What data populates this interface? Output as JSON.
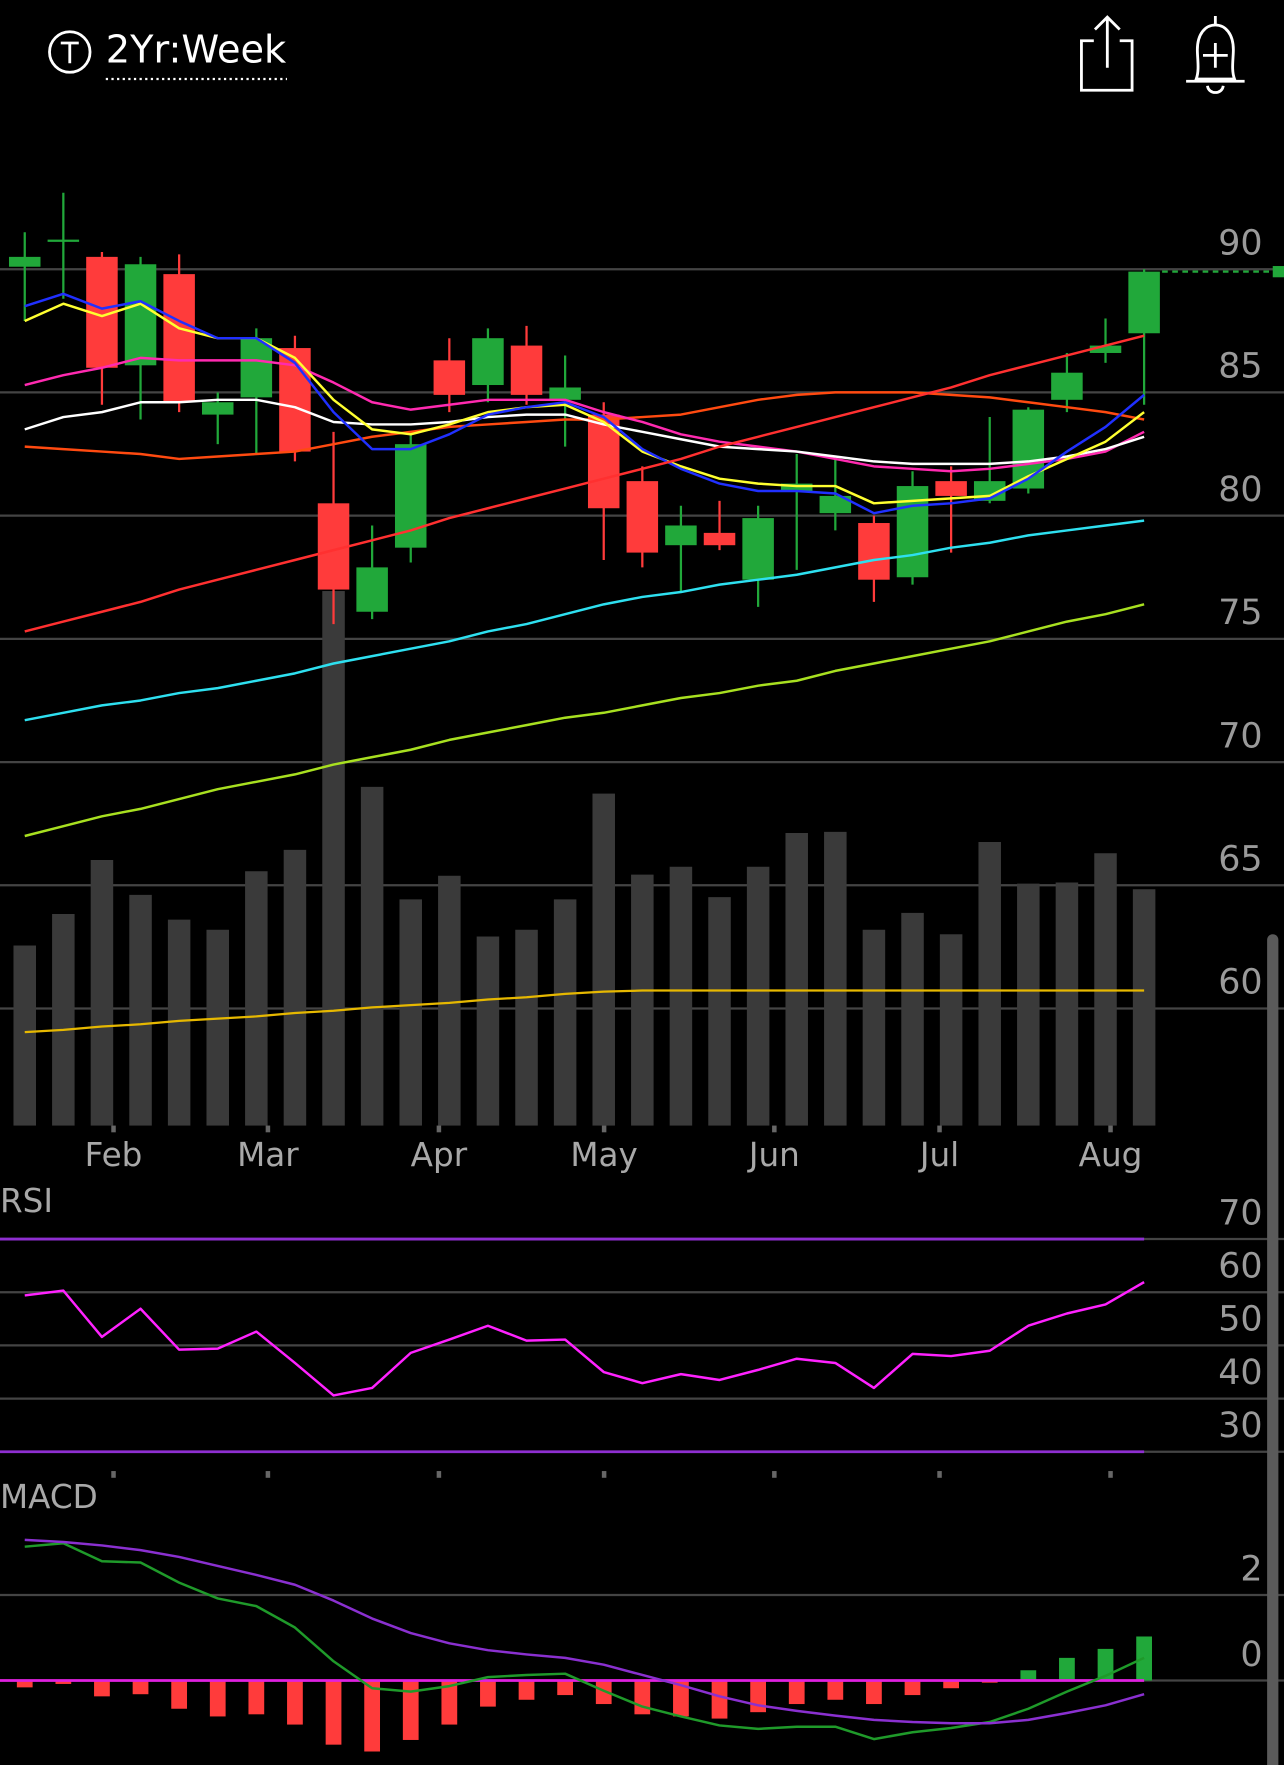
{
  "header": {
    "title": "2Yr:Week"
  },
  "chart_data": [
    {
      "type": "candlestick",
      "categories": [
        null,
        null,
        null,
        null,
        null,
        null,
        null,
        null,
        null,
        null,
        null,
        null,
        null,
        null,
        null,
        null,
        null,
        null,
        null,
        null,
        null,
        null,
        null,
        null,
        null,
        null,
        null,
        null,
        null,
        null
      ],
      "open": [
        90.1,
        91.2,
        90.5,
        86.1,
        89.8,
        84.1,
        84.8,
        86.8,
        80.5,
        76.1,
        78.7,
        86.3,
        85.3,
        86.9,
        84.7,
        84.1,
        81.4,
        78.8,
        79.3,
        77.4,
        81.0,
        80.1,
        79.7,
        77.5,
        81.4,
        80.6,
        81.1,
        84.7,
        86.6,
        87.4
      ],
      "high": [
        91.5,
        93.1,
        90.7,
        90.5,
        90.6,
        85.0,
        87.6,
        87.3,
        83.4,
        79.6,
        83.3,
        87.2,
        87.6,
        87.7,
        86.5,
        84.6,
        82.0,
        80.4,
        80.6,
        80.4,
        82.5,
        82.3,
        80.0,
        81.8,
        82.0,
        84.0,
        84.4,
        86.6,
        88.0,
        90.0
      ],
      "low": [
        87.9,
        88.8,
        84.5,
        83.9,
        84.2,
        82.9,
        82.5,
        82.2,
        75.6,
        75.8,
        78.1,
        84.2,
        84.6,
        84.5,
        82.8,
        78.2,
        77.9,
        76.9,
        78.6,
        76.3,
        77.8,
        79.4,
        76.5,
        77.2,
        78.5,
        80.5,
        80.9,
        84.2,
        86.2,
        84.5
      ],
      "close": [
        90.5,
        91.2,
        86.0,
        90.2,
        84.6,
        84.6,
        87.2,
        82.6,
        77.0,
        77.9,
        82.9,
        84.9,
        87.2,
        84.9,
        85.2,
        80.3,
        78.5,
        79.6,
        78.8,
        79.9,
        81.3,
        80.8,
        77.4,
        81.2,
        80.8,
        81.4,
        84.3,
        85.8,
        86.9,
        89.9
      ],
      "up_color": "#21a83a",
      "down_color": "#ff3b3b",
      "xlim": [
        -0.641,
        32.624
      ],
      "xticks": [
        {
          "value": 2.3,
          "label": "Feb"
        },
        {
          "value": 6.3,
          "label": "Mar"
        },
        {
          "value": 10.73,
          "label": "Apr"
        },
        {
          "value": 15.01,
          "label": "May"
        },
        {
          "value": 19.42,
          "label": "Jun"
        },
        {
          "value": 23.7,
          "label": "Jul"
        },
        {
          "value": 28.13,
          "label": "Aug"
        }
      ],
      "ylim": [
        55.25,
        95
      ],
      "yticks": [
        90,
        85,
        80,
        75,
        70,
        65,
        60
      ],
      "grid": true,
      "overlays": [
        {
          "color": "#2ee0f0",
          "values": [
            71.7,
            72.0,
            72.3,
            72.5,
            72.8,
            73.0,
            73.3,
            73.6,
            74.0,
            74.3,
            74.6,
            74.9,
            75.3,
            75.6,
            76.0,
            76.4,
            76.7,
            76.9,
            77.2,
            77.4,
            77.6,
            77.9,
            78.2,
            78.4,
            78.7,
            78.9,
            79.2,
            79.4,
            79.6,
            79.8
          ]
        },
        {
          "color": "#a8e020",
          "values": [
            67.0,
            67.4,
            67.8,
            68.1,
            68.5,
            68.9,
            69.2,
            69.5,
            69.9,
            70.2,
            70.5,
            70.9,
            71.2,
            71.5,
            71.8,
            72.0,
            72.3,
            72.6,
            72.8,
            73.1,
            73.3,
            73.7,
            74.0,
            74.3,
            74.6,
            74.9,
            75.3,
            75.7,
            76.0,
            76.4
          ]
        },
        {
          "color": "#ff4a10",
          "values": [
            82.8,
            82.7,
            82.6,
            82.5,
            82.3,
            82.4,
            82.5,
            82.6,
            82.9,
            83.2,
            83.4,
            83.6,
            83.7,
            83.8,
            83.9,
            83.9,
            84.0,
            84.1,
            84.4,
            84.7,
            84.9,
            85.0,
            85.0,
            85.0,
            84.9,
            84.8,
            84.6,
            84.4,
            84.2,
            83.9
          ]
        },
        {
          "color": "#ff2ab0",
          "values": [
            85.3,
            85.7,
            86.0,
            86.4,
            86.3,
            86.3,
            86.3,
            86.1,
            85.4,
            84.6,
            84.3,
            84.5,
            84.7,
            84.7,
            84.7,
            84.2,
            83.8,
            83.3,
            83.0,
            82.8,
            82.6,
            82.3,
            82.0,
            81.9,
            81.8,
            81.9,
            82.1,
            82.3,
            82.6,
            83.4
          ]
        },
        {
          "color": "#ffffff",
          "values": [
            83.5,
            84.0,
            84.2,
            84.6,
            84.6,
            84.7,
            84.7,
            84.4,
            83.8,
            83.7,
            83.7,
            83.8,
            84.0,
            84.1,
            84.1,
            83.7,
            83.4,
            83.1,
            82.8,
            82.7,
            82.6,
            82.4,
            82.2,
            82.1,
            82.1,
            82.1,
            82.2,
            82.4,
            82.7,
            83.2
          ]
        },
        {
          "color": "#ffff30",
          "values": [
            87.9,
            88.6,
            88.1,
            88.6,
            87.6,
            87.2,
            87.2,
            86.4,
            84.7,
            83.5,
            83.3,
            83.7,
            84.2,
            84.4,
            84.5,
            83.8,
            82.6,
            82.0,
            81.5,
            81.3,
            81.2,
            81.2,
            80.5,
            80.6,
            80.7,
            80.8,
            81.6,
            82.3,
            83.0,
            84.2
          ]
        },
        {
          "color": "#2030ff",
          "values": [
            88.5,
            89.0,
            88.4,
            88.7,
            87.9,
            87.2,
            87.2,
            86.2,
            84.2,
            82.7,
            82.7,
            83.3,
            84.1,
            84.4,
            84.6,
            84.0,
            82.7,
            81.9,
            81.3,
            81.0,
            81.0,
            80.9,
            80.1,
            80.4,
            80.5,
            80.7,
            81.5,
            82.6,
            83.6,
            84.9
          ]
        },
        {
          "color": "#ff3030",
          "values": [
            75.3,
            75.7,
            76.1,
            76.5,
            77.0,
            77.4,
            77.8,
            78.2,
            78.6,
            79.0,
            79.4,
            79.9,
            80.3,
            80.7,
            81.1,
            81.5,
            81.9,
            82.3,
            82.8,
            83.2,
            83.6,
            84.0,
            84.4,
            84.8,
            85.2,
            85.7,
            86.1,
            86.5,
            86.9,
            87.3
          ]
        }
      ],
      "volume": {
        "color": "#3a3a3a",
        "values": [
          160,
          188,
          236,
          205,
          183,
          174,
          226,
          245,
          475,
          301,
          201,
          222,
          168,
          174,
          201,
          295,
          223,
          230,
          203,
          230,
          260,
          261,
          174,
          189,
          170,
          252,
          215,
          216,
          242,
          210
        ],
        "ma": {
          "color": "#e6b800",
          "values": [
            83,
            85,
            88,
            90,
            93,
            95,
            97,
            100,
            102,
            105,
            107,
            109,
            112,
            114,
            117,
            119,
            120,
            120,
            120,
            120,
            120,
            120,
            120,
            120,
            120,
            120,
            120,
            120,
            120,
            120
          ]
        }
      }
    },
    {
      "type": "line",
      "title": "RSI",
      "xlim": [
        -0.641,
        32.624
      ],
      "ylim": [
        26.8,
        79.7
      ],
      "yticks": [
        70,
        60,
        50,
        40,
        30
      ],
      "grid": true,
      "levels": [
        70,
        30
      ],
      "level_color": "#8e2ed0",
      "series": [
        {
          "color": "#ff22ff",
          "values": [
            59.4,
            60.3,
            51.6,
            56.9,
            49.2,
            49.4,
            52.6,
            46.7,
            40.6,
            42.0,
            48.6,
            51.1,
            53.7,
            50.9,
            51.1,
            45.0,
            42.9,
            44.6,
            43.5,
            45.4,
            47.5,
            46.7,
            42.0,
            48.4,
            48.0,
            49.0,
            53.7,
            56.0,
            57.7,
            61.9
          ]
        }
      ]
    },
    {
      "type": "macd",
      "title": "MACD",
      "xlim": [
        -0.641,
        32.624
      ],
      "ylim": [
        -1.97,
        4.61
      ],
      "yticks": [
        2,
        0
      ],
      "grid": true,
      "zero_line_color": "#e020e0",
      "histogram": {
        "up_color": "#21a83a",
        "down_color": "#ff3b3b",
        "values": [
          -0.16,
          -0.08,
          -0.37,
          -0.32,
          -0.66,
          -0.84,
          -0.79,
          -1.03,
          -1.5,
          -1.66,
          -1.39,
          -1.03,
          -0.61,
          -0.45,
          -0.34,
          -0.55,
          -0.79,
          -0.84,
          -0.89,
          -0.74,
          -0.55,
          -0.45,
          -0.55,
          -0.34,
          -0.18,
          -0.05,
          0.24,
          0.53,
          0.74,
          1.03
        ]
      },
      "series": [
        {
          "color": "#1f9a2a",
          "values": [
            3.13,
            3.21,
            2.79,
            2.76,
            2.29,
            1.92,
            1.74,
            1.24,
            0.45,
            -0.18,
            -0.26,
            -0.13,
            0.08,
            0.13,
            0.16,
            -0.24,
            -0.61,
            -0.84,
            -1.05,
            -1.13,
            -1.08,
            -1.08,
            -1.37,
            -1.21,
            -1.11,
            -0.97,
            -0.66,
            -0.26,
            0.11,
            0.53
          ]
        },
        {
          "color": "#8a30d0",
          "values": [
            3.29,
            3.24,
            3.16,
            3.05,
            2.89,
            2.68,
            2.47,
            2.24,
            1.87,
            1.45,
            1.11,
            0.87,
            0.71,
            0.61,
            0.53,
            0.37,
            0.13,
            -0.11,
            -0.37,
            -0.58,
            -0.71,
            -0.82,
            -0.92,
            -0.97,
            -1.0,
            -1.0,
            -0.92,
            -0.76,
            -0.58,
            -0.32
          ]
        }
      ]
    }
  ]
}
